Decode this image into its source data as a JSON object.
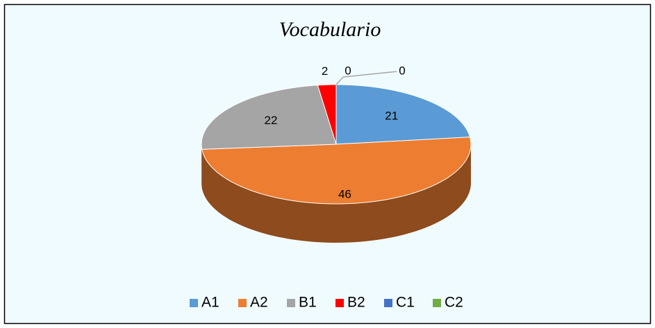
{
  "chart_data": {
    "type": "pie",
    "title": "Vocabulario",
    "categories": [
      "A1",
      "A2",
      "B1",
      "B2",
      "C1",
      "C2"
    ],
    "values": [
      21,
      46,
      22,
      2,
      0,
      0
    ],
    "colors": [
      "#5b9bd5",
      "#ed7d31",
      "#a5a5a5",
      "#ff0000",
      "#4472c4",
      "#70ad47"
    ],
    "legend": "bottom"
  }
}
